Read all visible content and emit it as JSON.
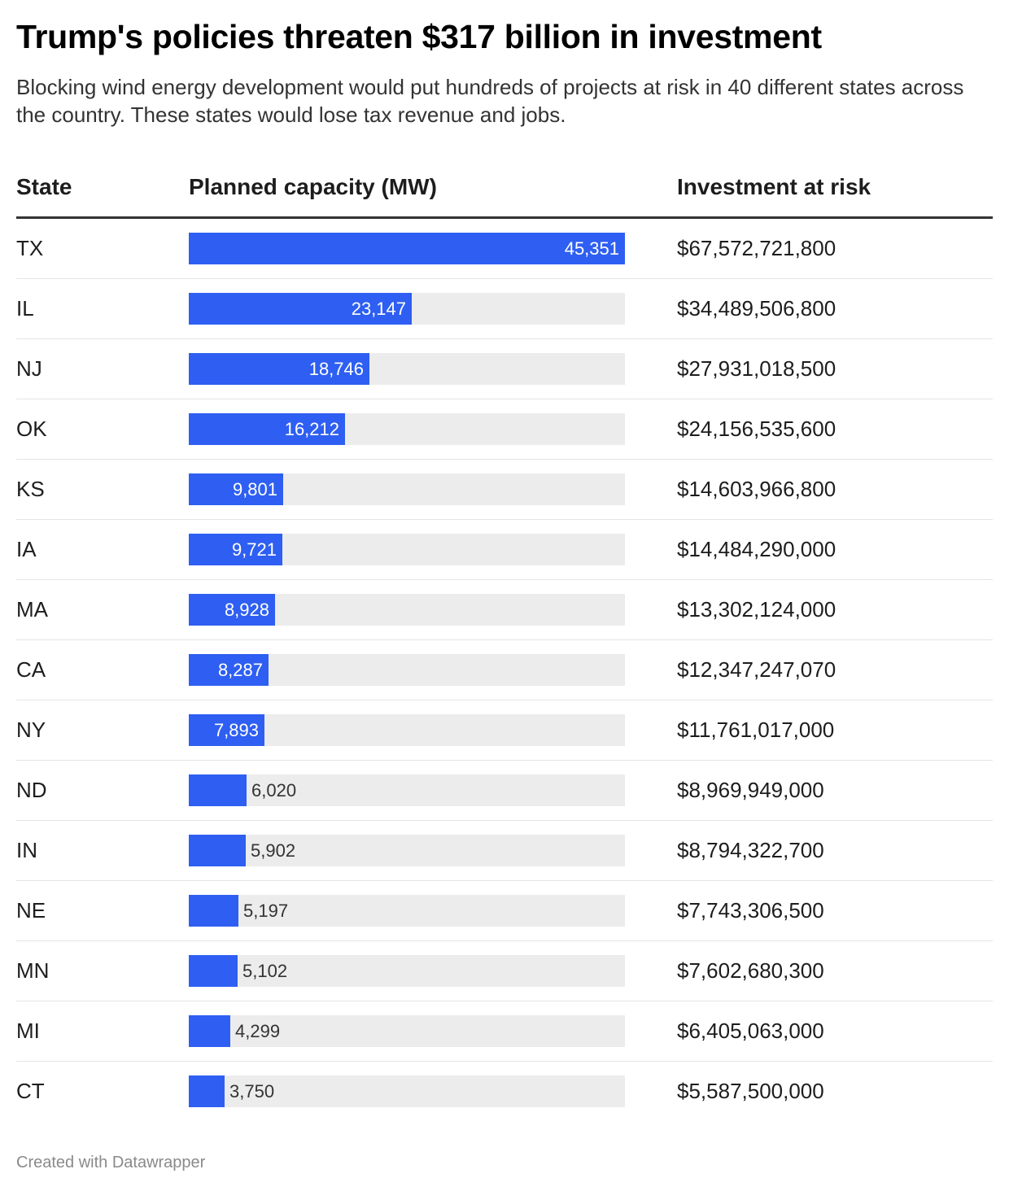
{
  "title": "Trump's policies threaten $317 billion in investment",
  "subtitle": "Blocking wind energy development would put hundreds of projects at risk in 40 different states across the country. These states would lose tax revenue and jobs.",
  "columns": {
    "state": "State",
    "capacity": "Planned capacity (MW)",
    "investment": "Investment at risk"
  },
  "footer": "Created with Datawrapper",
  "colors": {
    "bar": "#2e5ff2",
    "track": "#ececec"
  },
  "chart_data": {
    "type": "table",
    "title": "Trump's policies threaten $317 billion in investment",
    "columns": [
      "State",
      "Planned capacity (MW)",
      "Investment at risk"
    ],
    "bar_column": "Planned capacity (MW)",
    "bar_max": 45351,
    "rows": [
      {
        "state": "TX",
        "capacity": 45351,
        "capacity_label": "45,351",
        "investment": "$67,572,721,800"
      },
      {
        "state": "IL",
        "capacity": 23147,
        "capacity_label": "23,147",
        "investment": "$34,489,506,800"
      },
      {
        "state": "NJ",
        "capacity": 18746,
        "capacity_label": "18,746",
        "investment": "$27,931,018,500"
      },
      {
        "state": "OK",
        "capacity": 16212,
        "capacity_label": "16,212",
        "investment": "$24,156,535,600"
      },
      {
        "state": "KS",
        "capacity": 9801,
        "capacity_label": "9,801",
        "investment": "$14,603,966,800"
      },
      {
        "state": "IA",
        "capacity": 9721,
        "capacity_label": "9,721",
        "investment": "$14,484,290,000"
      },
      {
        "state": "MA",
        "capacity": 8928,
        "capacity_label": "8,928",
        "investment": "$13,302,124,000"
      },
      {
        "state": "CA",
        "capacity": 8287,
        "capacity_label": "8,287",
        "investment": "$12,347,247,070"
      },
      {
        "state": "NY",
        "capacity": 7893,
        "capacity_label": "7,893",
        "investment": "$11,761,017,000"
      },
      {
        "state": "ND",
        "capacity": 6020,
        "capacity_label": "6,020",
        "investment": "$8,969,949,000"
      },
      {
        "state": "IN",
        "capacity": 5902,
        "capacity_label": "5,902",
        "investment": "$8,794,322,700"
      },
      {
        "state": "NE",
        "capacity": 5197,
        "capacity_label": "5,197",
        "investment": "$7,743,306,500"
      },
      {
        "state": "MN",
        "capacity": 5102,
        "capacity_label": "5,102",
        "investment": "$7,602,680,300"
      },
      {
        "state": "MI",
        "capacity": 4299,
        "capacity_label": "4,299",
        "investment": "$6,405,063,000"
      },
      {
        "state": "CT",
        "capacity": 3750,
        "capacity_label": "3,750",
        "investment": "$5,587,500,000"
      }
    ]
  }
}
